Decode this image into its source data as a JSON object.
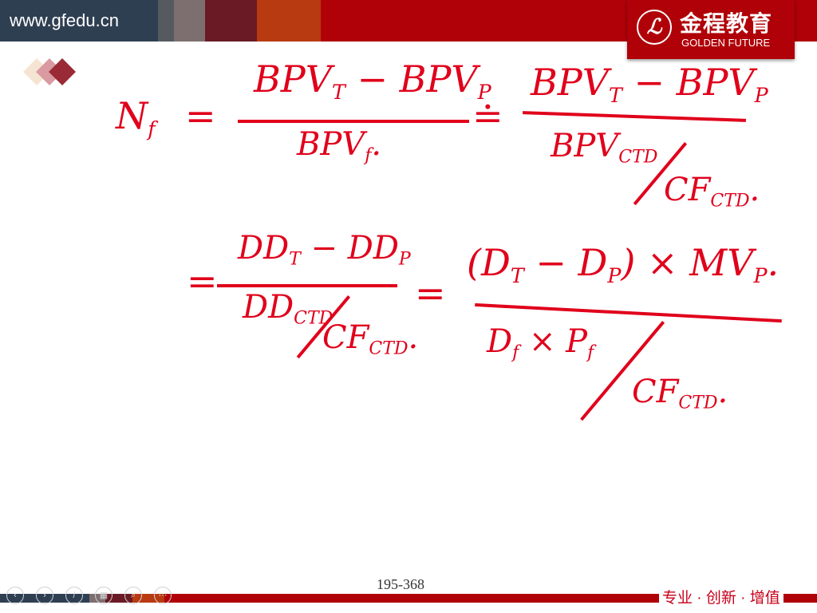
{
  "header": {
    "url": "www.gfedu.cn",
    "logo_cn": "金程教育",
    "logo_en": "GOLDEN FUTURE",
    "logo_mark": "ℒ",
    "colors": {
      "slate": "#2f3f52",
      "gray": "#555a60",
      "taupe": "#7d6f6f",
      "maroon": "#6a1a24",
      "orange": "#b83a10",
      "red": "#b00008"
    }
  },
  "formula": {
    "nf": "N",
    "nf_sub": "f",
    "eq1": "=",
    "num1": "BPV",
    "num1_sub": "T",
    "minus": "−",
    "num1b": "BPV",
    "num1b_sub": "P",
    "den1": "BPV",
    "den1_sub": "f",
    "dot": ".",
    "approx": "≐",
    "num2": "BPV",
    "num2_sub": "T",
    "num2b": "BPV",
    "num2b_sub": "P",
    "den2": "BPV",
    "den2_sub": "CTD",
    "den2_cf": "CF",
    "den2_cf_sub": "CTD",
    "eq2": "=",
    "num3": "DD",
    "num3_sub": "T",
    "num3b": "DD",
    "num3b_sub": "P",
    "den3": "DD",
    "den3_sub": "CTD",
    "den3_cf": "CF",
    "den3_cf_sub": "CTD",
    "eq3": "=",
    "num4": "(D",
    "num4_sub": "T",
    "num4b": "− D",
    "num4b_sub": "P",
    "num4c": ") × MV",
    "num4c_sub": "P",
    "den4": "D",
    "den4_sub": "f",
    "den4b": "× P",
    "den4b_sub": "f",
    "den4_cf": "CF",
    "den4_cf_sub": "CTD"
  },
  "footer": {
    "page_label": "195-368",
    "slogan": "专业 · 创新 · 增值",
    "nav_buttons": [
      {
        "icon": "prev-icon",
        "glyph": "‹"
      },
      {
        "icon": "next-icon",
        "glyph": "›"
      },
      {
        "icon": "pen-icon",
        "glyph": "/"
      },
      {
        "icon": "slides-icon",
        "glyph": "▦"
      },
      {
        "icon": "zoom-icon",
        "glyph": "⌕"
      },
      {
        "icon": "more-icon",
        "glyph": "⋯"
      }
    ]
  }
}
